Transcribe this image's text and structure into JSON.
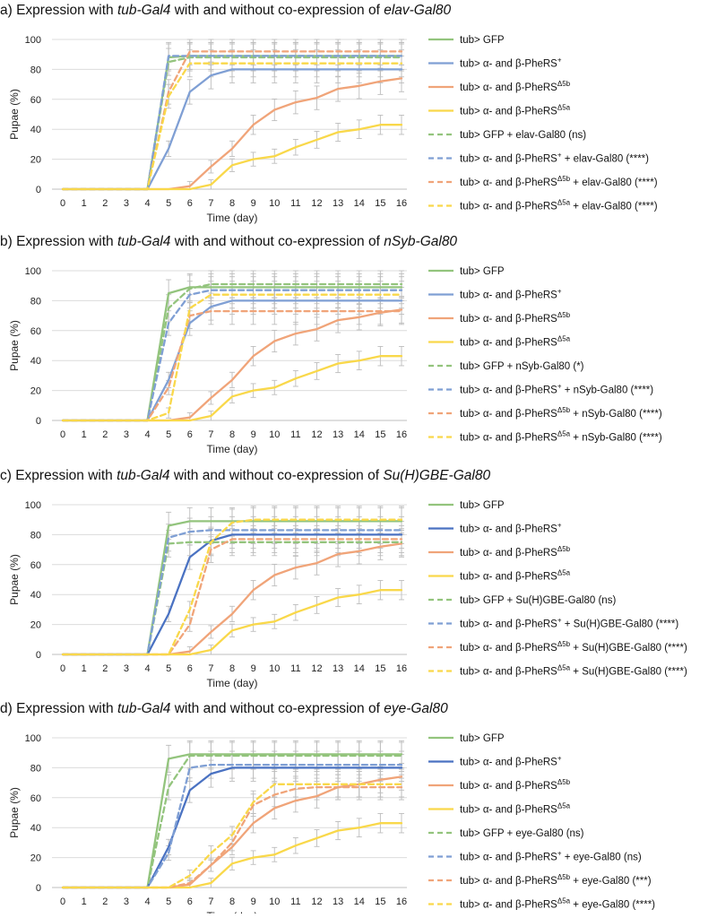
{
  "figure": {
    "x_axis_title": "Time (day)",
    "y_axis_title": "Pupae (%)"
  },
  "chart_data": [
    {
      "type": "line",
      "panel": "a)",
      "title_prefix": "Expression with ",
      "title_driver": "tub-Gal4",
      "title_middle": " with and without co-expression of ",
      "title_gal80": "elav-Gal80",
      "xlabel": "Time (day)",
      "ylabel": "Pupae (%)",
      "x": [
        0,
        1,
        2,
        3,
        4,
        5,
        6,
        7,
        8,
        9,
        10,
        11,
        12,
        13,
        14,
        15,
        16
      ],
      "ylim": [
        0,
        100
      ],
      "yticks": [
        0,
        20,
        40,
        60,
        80,
        100
      ],
      "legend_position": "right",
      "series": [
        {
          "name": "tub> GFP",
          "legend": [
            "tub> GFP"
          ],
          "color": "#93c47d",
          "dash": false,
          "values": [
            0,
            0,
            0,
            0,
            0,
            88,
            89,
            89,
            89,
            89,
            89,
            89,
            89,
            89,
            89,
            89,
            89
          ]
        },
        {
          "name": "tub> α- and β-PheRS⁺",
          "legend": [
            "tub> α- and β-PheRS",
            "+",
            ""
          ],
          "color": "#7f9fd4",
          "dash": false,
          "values": [
            0,
            0,
            0,
            0,
            0,
            27,
            65,
            76,
            80,
            80,
            80,
            80,
            80,
            80,
            80,
            80,
            80
          ]
        },
        {
          "name": "tub> α- and β-PheRS^Δ5b",
          "legend": [
            "tub> α- and β-PheRS",
            "Δ5b",
            ""
          ],
          "color": "#f0a479",
          "dash": false,
          "values": [
            0,
            0,
            0,
            0,
            0,
            0,
            2,
            15,
            27,
            43,
            53,
            58,
            61,
            67,
            69,
            72,
            74
          ]
        },
        {
          "name": "tub> α- and β-PheRS^Δ5a",
          "legend": [
            "tub> α- and β-PheRS",
            "Δ5a",
            ""
          ],
          "color": "#f9d84a",
          "dash": false,
          "values": [
            0,
            0,
            0,
            0,
            0,
            0,
            0,
            3,
            16,
            20,
            22,
            28,
            33,
            38,
            40,
            43,
            43
          ]
        },
        {
          "name": "tub> GFP + elav-Gal80 (ns)",
          "legend": [
            "tub> GFP + elav-Gal80 (ns)"
          ],
          "color": "#93c47d",
          "dash": true,
          "values": [
            0,
            0,
            0,
            0,
            0,
            85,
            88,
            88,
            88,
            88,
            88,
            88,
            88,
            88,
            88,
            88,
            88
          ]
        },
        {
          "name": "tub> α- and β-PheRS⁺ + elav-Gal80 (****)",
          "legend": [
            "tub> α- and β-PheRS",
            "+",
            " + elav-Gal80 (****)"
          ],
          "color": "#7f9fd4",
          "dash": true,
          "values": [
            0,
            0,
            0,
            0,
            0,
            89,
            89,
            89,
            89,
            89,
            89,
            89,
            89,
            89,
            89,
            89,
            89
          ]
        },
        {
          "name": "tub> α- and β-PheRS^Δ5b + elav-Gal80 (****)",
          "legend": [
            "tub> α- and β-PheRS",
            "Δ5b",
            " + elav-Gal80 (****)"
          ],
          "color": "#f0a479",
          "dash": true,
          "values": [
            0,
            0,
            0,
            0,
            0,
            65,
            92,
            92,
            92,
            92,
            92,
            92,
            92,
            92,
            92,
            92,
            92
          ]
        },
        {
          "name": "tub> α- and β-PheRS^Δ5a + elav-Gal80 (****)",
          "legend": [
            "tub> α- and β-PheRS",
            "Δ5a",
            " + elav-Gal80 (****)"
          ],
          "color": "#f9d84a",
          "dash": true,
          "values": [
            0,
            0,
            0,
            0,
            0,
            62,
            84,
            84,
            84,
            84,
            84,
            84,
            84,
            84,
            84,
            84,
            84
          ]
        }
      ]
    },
    {
      "type": "line",
      "panel": "b)",
      "title_prefix": "Expression with ",
      "title_driver": "tub-Gal4",
      "title_middle": " with and without co-expression of ",
      "title_gal80": "nSyb-Gal80",
      "xlabel": "Time (day)",
      "ylabel": "Pupae (%)",
      "x": [
        0,
        1,
        2,
        3,
        4,
        5,
        6,
        7,
        8,
        9,
        10,
        11,
        12,
        13,
        14,
        15,
        16
      ],
      "ylim": [
        0,
        100
      ],
      "yticks": [
        0,
        20,
        40,
        60,
        80,
        100
      ],
      "legend_position": "right",
      "series": [
        {
          "name": "tub> GFP",
          "legend": [
            "tub> GFP"
          ],
          "color": "#93c47d",
          "dash": false,
          "values": [
            0,
            0,
            0,
            0,
            0,
            85,
            89,
            89,
            89,
            89,
            89,
            89,
            89,
            89,
            89,
            89,
            89
          ]
        },
        {
          "name": "tub> α- and β-PheRS⁺",
          "legend": [
            "tub> α- and β-PheRS",
            "+",
            ""
          ],
          "color": "#7f9fd4",
          "dash": false,
          "values": [
            0,
            0,
            0,
            0,
            0,
            27,
            65,
            76,
            80,
            80,
            80,
            80,
            80,
            80,
            80,
            80,
            80
          ]
        },
        {
          "name": "tub> α- and β-PheRS^Δ5b",
          "legend": [
            "tub> α- and β-PheRS",
            "Δ5b",
            ""
          ],
          "color": "#f0a479",
          "dash": false,
          "values": [
            0,
            0,
            0,
            0,
            0,
            0,
            2,
            15,
            27,
            43,
            53,
            58,
            61,
            67,
            69,
            72,
            74
          ]
        },
        {
          "name": "tub> α- and β-PheRS^Δ5a",
          "legend": [
            "tub> α- and β-PheRS",
            "Δ5a",
            ""
          ],
          "color": "#f9d84a",
          "dash": false,
          "values": [
            0,
            0,
            0,
            0,
            0,
            0,
            0,
            3,
            16,
            20,
            22,
            28,
            33,
            38,
            40,
            43,
            43
          ]
        },
        {
          "name": "tub> GFP + nSyb-Gal80 (*)",
          "legend": [
            "tub> GFP + nSyb-Gal80 (*)"
          ],
          "color": "#93c47d",
          "dash": true,
          "values": [
            0,
            0,
            0,
            0,
            0,
            75,
            88,
            91,
            91,
            91,
            91,
            91,
            91,
            91,
            91,
            91,
            91
          ]
        },
        {
          "name": "tub> α- and β-PheRS⁺ + nSyb-Gal80 (****)",
          "legend": [
            "tub> α- and β-PheRS",
            "+",
            " + nSyb-Gal80 (****)"
          ],
          "color": "#7f9fd4",
          "dash": true,
          "values": [
            0,
            0,
            0,
            0,
            0,
            65,
            84,
            87,
            87,
            87,
            87,
            87,
            87,
            87,
            87,
            87,
            87
          ]
        },
        {
          "name": "tub> α- and β-PheRS^Δ5b + nSyb-Gal80 (****)",
          "legend": [
            "tub> α- and β-PheRS",
            "Δ5b",
            " + nSyb-Gal80 (****)"
          ],
          "color": "#f0a479",
          "dash": true,
          "values": [
            0,
            0,
            0,
            0,
            0,
            22,
            70,
            73,
            73,
            73,
            73,
            73,
            73,
            73,
            73,
            73,
            73
          ]
        },
        {
          "name": "tub> α- and β-PheRS^Δ5a + nSyb-Gal80 (****)",
          "legend": [
            "tub> α- and β-PheRS",
            "Δ5a",
            " + nSyb-Gal80 (****)"
          ],
          "color": "#f9d84a",
          "dash": true,
          "values": [
            0,
            0,
            0,
            0,
            0,
            5,
            75,
            84,
            84,
            84,
            84,
            84,
            84,
            84,
            84,
            84,
            84
          ]
        }
      ]
    },
    {
      "type": "line",
      "panel": "c)",
      "title_prefix": "Expression with ",
      "title_driver": "tub-Gal4",
      "title_middle": " with and without co-expression of ",
      "title_gal80": "Su(H)GBE-Gal80",
      "xlabel": "Time (day)",
      "ylabel": "Pupae (%)",
      "x": [
        0,
        1,
        2,
        3,
        4,
        5,
        6,
        7,
        8,
        9,
        10,
        11,
        12,
        13,
        14,
        15,
        16
      ],
      "ylim": [
        0,
        100
      ],
      "yticks": [
        0,
        20,
        40,
        60,
        80,
        100
      ],
      "legend_position": "right",
      "series": [
        {
          "name": "tub> GFP",
          "legend": [
            "tub> GFP"
          ],
          "color": "#93c47d",
          "dash": false,
          "values": [
            0,
            0,
            0,
            0,
            0,
            86,
            89,
            89,
            89,
            89,
            89,
            89,
            89,
            89,
            89,
            89,
            89
          ]
        },
        {
          "name": "tub> α- and β-PheRS⁺",
          "legend": [
            "tub> α- and β-PheRS",
            "+",
            ""
          ],
          "color": "#4a72c2",
          "dash": false,
          "values": [
            0,
            0,
            0,
            0,
            0,
            27,
            65,
            76,
            80,
            80,
            80,
            80,
            80,
            80,
            80,
            80,
            80
          ]
        },
        {
          "name": "tub> α- and β-PheRS^Δ5b",
          "legend": [
            "tub> α- and β-PheRS",
            "Δ5b",
            ""
          ],
          "color": "#f0a479",
          "dash": false,
          "values": [
            0,
            0,
            0,
            0,
            0,
            0,
            2,
            15,
            27,
            43,
            53,
            58,
            61,
            67,
            69,
            72,
            74
          ]
        },
        {
          "name": "tub> α- and β-PheRS^Δ5a",
          "legend": [
            "tub> α- and β-PheRS",
            "Δ5a",
            ""
          ],
          "color": "#f9d84a",
          "dash": false,
          "values": [
            0,
            0,
            0,
            0,
            0,
            0,
            0,
            3,
            16,
            20,
            22,
            28,
            33,
            38,
            40,
            43,
            43
          ]
        },
        {
          "name": "tub> GFP + Su(H)GBE-Gal80 (ns)",
          "legend": [
            "tub> GFP + Su(H)GBE-Gal80 (ns)"
          ],
          "color": "#93c47d",
          "dash": true,
          "values": [
            0,
            0,
            0,
            0,
            0,
            74,
            75,
            75,
            75,
            75,
            75,
            75,
            75,
            75,
            75,
            75,
            75
          ]
        },
        {
          "name": "tub> α- and β-PheRS⁺ + Su(H)GBE-Gal80 (****)",
          "legend": [
            "tub> α- and β-PheRS",
            "+",
            " + Su(H)GBE-Gal80 (****)"
          ],
          "color": "#7f9fd4",
          "dash": true,
          "values": [
            0,
            0,
            0,
            0,
            0,
            78,
            82,
            83,
            83,
            83,
            83,
            83,
            83,
            83,
            83,
            83,
            83
          ]
        },
        {
          "name": "tub> α- and β-PheRS^Δ5b + Su(H)GBE-Gal80 (****)",
          "legend": [
            "tub> α- and β-PheRS",
            "Δ5b",
            " + Su(H)GBE-Gal80 (****)"
          ],
          "color": "#f0a479",
          "dash": true,
          "values": [
            0,
            0,
            0,
            0,
            0,
            0,
            20,
            70,
            77,
            77,
            77,
            77,
            77,
            77,
            77,
            77,
            77
          ]
        },
        {
          "name": "tub> α- and β-PheRS^Δ5a + Su(H)GBE-Gal80 (****)",
          "legend": [
            "tub> α- and β-PheRS",
            "Δ5a",
            " + Su(H)GBE-Gal80 (****)"
          ],
          "color": "#f9d84a",
          "dash": true,
          "values": [
            0,
            0,
            0,
            0,
            0,
            0,
            30,
            75,
            88,
            90,
            90,
            90,
            90,
            90,
            90,
            90,
            90
          ]
        }
      ]
    },
    {
      "type": "line",
      "panel": "d)",
      "title_prefix": "Expression with ",
      "title_driver": "tub-Gal4",
      "title_middle": " with and without co-expression of ",
      "title_gal80": "eye-Gal80",
      "xlabel": "Time (day)",
      "ylabel": "Pupae (%)",
      "x": [
        0,
        1,
        2,
        3,
        4,
        5,
        6,
        7,
        8,
        9,
        10,
        11,
        12,
        13,
        14,
        15,
        16
      ],
      "ylim": [
        0,
        100
      ],
      "yticks": [
        0,
        20,
        40,
        60,
        80,
        100
      ],
      "legend_position": "right",
      "series": [
        {
          "name": "tub> GFP",
          "legend": [
            "tub> GFP"
          ],
          "color": "#93c47d",
          "dash": false,
          "values": [
            0,
            0,
            0,
            0,
            0,
            86,
            89,
            89,
            89,
            89,
            89,
            89,
            89,
            89,
            89,
            89,
            89
          ]
        },
        {
          "name": "tub> α- and β-PheRS⁺",
          "legend": [
            "tub> α- and β-PheRS",
            "+",
            ""
          ],
          "color": "#4a72c2",
          "dash": false,
          "values": [
            0,
            0,
            0,
            0,
            0,
            27,
            65,
            76,
            80,
            80,
            80,
            80,
            80,
            80,
            80,
            80,
            80
          ]
        },
        {
          "name": "tub> α- and β-PheRS^Δ5b",
          "legend": [
            "tub> α- and β-PheRS",
            "Δ5b",
            ""
          ],
          "color": "#f0a479",
          "dash": false,
          "values": [
            0,
            0,
            0,
            0,
            0,
            0,
            2,
            15,
            27,
            43,
            53,
            58,
            61,
            67,
            69,
            72,
            74
          ]
        },
        {
          "name": "tub> α- and β-PheRS^Δ5a",
          "legend": [
            "tub> α- and β-PheRS",
            "Δ5a",
            ""
          ],
          "color": "#f9d84a",
          "dash": false,
          "values": [
            0,
            0,
            0,
            0,
            0,
            0,
            0,
            3,
            16,
            20,
            22,
            28,
            33,
            38,
            40,
            43,
            43
          ]
        },
        {
          "name": "tub> GFP + eye-Gal80 (ns)",
          "legend": [
            "tub> GFP + eye-Gal80 (ns)"
          ],
          "color": "#93c47d",
          "dash": true,
          "values": [
            0,
            0,
            0,
            0,
            0,
            67,
            88,
            88,
            88,
            88,
            88,
            88,
            88,
            88,
            88,
            88,
            88
          ]
        },
        {
          "name": "tub> α- and β-PheRS⁺ + eye-Gal80 (ns)",
          "legend": [
            "tub> α- and β-PheRS",
            "+",
            " + eye-Gal80 (ns)"
          ],
          "color": "#7f9fd4",
          "dash": true,
          "values": [
            0,
            0,
            0,
            0,
            0,
            23,
            80,
            82,
            82,
            82,
            82,
            82,
            82,
            82,
            82,
            82,
            82
          ]
        },
        {
          "name": "tub> α- and β-PheRS^Δ5b + eye-Gal80 (***)",
          "legend": [
            "tub> α- and β-PheRS",
            "Δ5b",
            " + eye-Gal80 (***)"
          ],
          "color": "#f0a479",
          "dash": true,
          "values": [
            0,
            0,
            0,
            0,
            0,
            0,
            3,
            15,
            30,
            55,
            62,
            66,
            67,
            67,
            67,
            67,
            67
          ]
        },
        {
          "name": "tub> α- and β-PheRS^Δ5a + eye-Gal80 (****)",
          "legend": [
            "tub> α- and β-PheRS",
            "Δ5a",
            " + eye-Gal80 (****)"
          ],
          "color": "#f9d84a",
          "dash": true,
          "values": [
            0,
            0,
            0,
            0,
            0,
            0,
            8,
            23,
            35,
            57,
            69,
            69,
            69,
            69,
            69,
            69,
            69
          ]
        }
      ]
    }
  ]
}
